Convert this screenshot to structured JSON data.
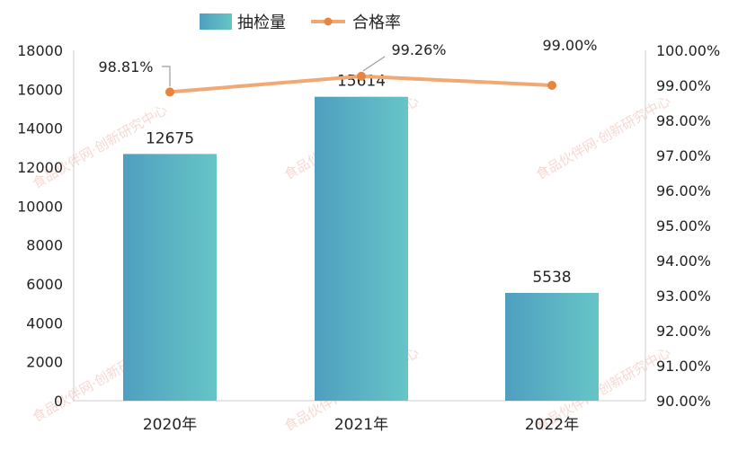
{
  "colors": {
    "bar_left": "#4f9fbf",
    "bar_right": "#66c5c7",
    "line": "#f2a873",
    "marker": "#e8853d",
    "axis": "#cccccc",
    "leader": "#9e9e9e"
  },
  "watermark_text": "食品伙伴网·创新研究中心",
  "chart_data": {
    "type": "bar",
    "categories": [
      "2020年",
      "2021年",
      "2022年"
    ],
    "series": [
      {
        "name": "抽检量",
        "type": "bar",
        "axis": "left",
        "values": [
          12675,
          15614,
          5538
        ],
        "labels": [
          "12675",
          "15614",
          "5538"
        ]
      },
      {
        "name": "合格率",
        "type": "line",
        "axis": "right",
        "values": [
          98.81,
          99.26,
          99.0
        ],
        "labels": [
          "98.81%",
          "99.26%",
          "99.00%"
        ]
      }
    ],
    "y_left": {
      "min": 0,
      "max": 18000,
      "step": 2000,
      "ticks": [
        "0",
        "2000",
        "4000",
        "6000",
        "8000",
        "10000",
        "12000",
        "14000",
        "16000",
        "18000"
      ]
    },
    "y_right": {
      "min": 90,
      "max": 100,
      "step": 1,
      "ticks": [
        "90.00%",
        "91.00%",
        "92.00%",
        "93.00%",
        "94.00%",
        "95.00%",
        "96.00%",
        "97.00%",
        "98.00%",
        "99.00%",
        "100.00%"
      ]
    },
    "legend": {
      "position": "top-center",
      "items": [
        "抽检量",
        "合格率"
      ]
    },
    "grid": false
  }
}
